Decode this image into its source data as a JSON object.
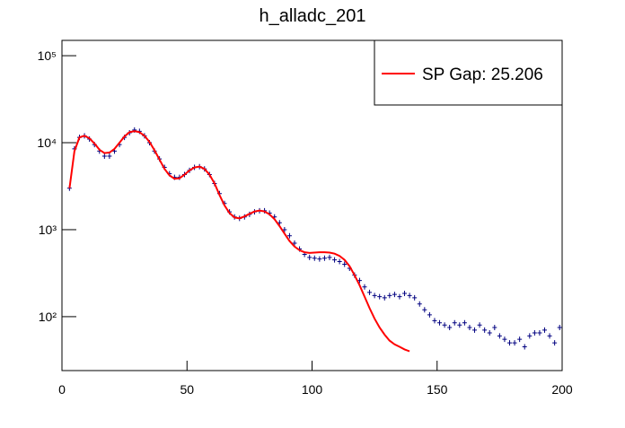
{
  "chart_data": {
    "type": "line",
    "title": "h_alladc_201",
    "log_y": true,
    "xlim": [
      0,
      200
    ],
    "xticks": [
      0,
      50,
      100,
      150,
      200
    ],
    "ylim": [
      24,
      150000
    ],
    "yticks": [
      {
        "value": 100,
        "label": "10²"
      },
      {
        "value": 1000,
        "label": "10³"
      },
      {
        "value": 10000,
        "label": "10⁴"
      },
      {
        "value": 100000,
        "label": "10⁵"
      }
    ],
    "legend": "top-right",
    "series": [
      {
        "color": "#000080",
        "style": "points",
        "x": [
          3,
          5,
          7,
          9,
          11,
          13,
          15,
          17,
          19,
          21,
          23,
          25,
          27,
          29,
          31,
          33,
          35,
          37,
          39,
          41,
          43,
          45,
          47,
          49,
          51,
          53,
          55,
          57,
          59,
          61,
          63,
          65,
          67,
          69,
          71,
          73,
          75,
          77,
          79,
          81,
          83,
          85,
          87,
          89,
          91,
          93,
          95,
          97,
          99,
          101,
          103,
          105,
          107,
          109,
          111,
          113,
          115,
          117,
          119,
          121,
          123,
          125,
          127,
          129,
          131,
          133,
          135,
          137,
          139,
          141,
          143,
          145,
          147,
          149,
          151,
          153,
          155,
          157,
          159,
          161,
          163,
          165,
          167,
          169,
          171,
          173,
          175,
          177,
          179,
          181,
          183,
          185,
          187,
          189,
          191,
          193,
          195,
          197,
          199
        ],
        "values": [
          3000,
          8500,
          11500,
          12000,
          11000,
          9500,
          8000,
          7000,
          7000,
          8000,
          9500,
          11500,
          13000,
          14000,
          13500,
          12000,
          10000,
          8000,
          6500,
          5200,
          4400,
          4000,
          4000,
          4300,
          4800,
          5200,
          5300,
          5000,
          4300,
          3400,
          2600,
          2000,
          1600,
          1400,
          1350,
          1400,
          1500,
          1600,
          1650,
          1650,
          1550,
          1400,
          1200,
          1000,
          850,
          700,
          600,
          520,
          480,
          470,
          460,
          470,
          480,
          450,
          430,
          400,
          360,
          300,
          260,
          220,
          190,
          175,
          170,
          165,
          175,
          180,
          170,
          185,
          175,
          165,
          140,
          120,
          105,
          90,
          85,
          80,
          75,
          85,
          80,
          85,
          75,
          70,
          80,
          70,
          65,
          75,
          60,
          55,
          50,
          50,
          55,
          45,
          60,
          65,
          65,
          70,
          60,
          50,
          75
        ]
      },
      {
        "name": "SP Gap: 25.206",
        "color": "#ff0000",
        "style": "line",
        "x": [
          3,
          5,
          7,
          9,
          11,
          13,
          15,
          17,
          19,
          21,
          23,
          25,
          27,
          29,
          31,
          33,
          35,
          37,
          39,
          41,
          43,
          45,
          47,
          49,
          51,
          53,
          55,
          57,
          59,
          61,
          63,
          65,
          67,
          69,
          71,
          73,
          75,
          77,
          79,
          81,
          83,
          85,
          87,
          89,
          91,
          93,
          95,
          97,
          99,
          101,
          103,
          105,
          107,
          109,
          111,
          113,
          115,
          117,
          119,
          121,
          123,
          125,
          127,
          129,
          131,
          133,
          135,
          137,
          139
        ],
        "values": [
          3000,
          8000,
          11500,
          12000,
          11200,
          9800,
          8300,
          7600,
          7700,
          8500,
          10000,
          11800,
          13200,
          13600,
          13200,
          12000,
          10200,
          8200,
          6400,
          5000,
          4200,
          3850,
          3900,
          4300,
          4800,
          5200,
          5300,
          5000,
          4300,
          3400,
          2500,
          1900,
          1550,
          1380,
          1350,
          1420,
          1520,
          1620,
          1660,
          1620,
          1500,
          1320,
          1100,
          900,
          740,
          640,
          580,
          550,
          540,
          545,
          550,
          550,
          545,
          530,
          500,
          450,
          380,
          300,
          230,
          170,
          125,
          95,
          75,
          62,
          53,
          48,
          45,
          42,
          40
        ]
      }
    ]
  }
}
